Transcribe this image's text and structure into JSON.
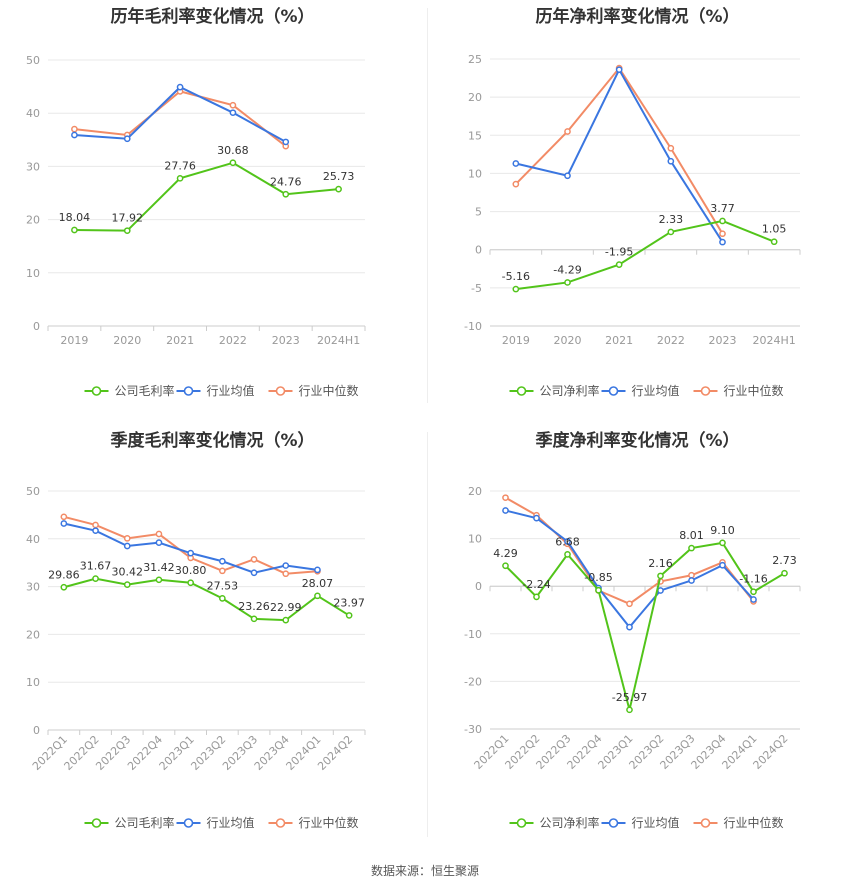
{
  "colors": {
    "company": "#52c41a",
    "industry_avg": "#3a76e0",
    "industry_median": "#f28b66",
    "grid": "#e8e8e8",
    "axis": "#cccccc"
  },
  "legend": {
    "gross": [
      "公司毛利率",
      "行业均值",
      "行业中位数"
    ],
    "net": [
      "公司净利率",
      "行业均值",
      "行业中位数"
    ]
  },
  "source": "数据来源：恒生聚源",
  "chart_data": [
    {
      "type": "line",
      "title": "历年毛利率变化情况（%）",
      "categories": [
        "2019",
        "2020",
        "2021",
        "2022",
        "2023",
        "2024H1"
      ],
      "ylim": [
        0,
        50
      ],
      "yticks": [
        0,
        10,
        20,
        30,
        40,
        50
      ],
      "legend_position": "bottom",
      "series": [
        {
          "name": "公司毛利率",
          "values": [
            18.04,
            17.92,
            27.76,
            30.68,
            24.76,
            25.73
          ],
          "labels": [
            "18.04",
            "17.92",
            "27.76",
            "30.68",
            "24.76",
            "25.73"
          ]
        },
        {
          "name": "行业均值",
          "values": [
            35.9,
            35.2,
            44.9,
            40.1,
            34.6,
            null
          ]
        },
        {
          "name": "行业中位数",
          "values": [
            37.0,
            35.9,
            44.1,
            41.5,
            33.8,
            null
          ]
        }
      ]
    },
    {
      "type": "line",
      "title": "历年净利率变化情况（%）",
      "categories": [
        "2019",
        "2020",
        "2021",
        "2022",
        "2023",
        "2024H1"
      ],
      "ylim": [
        -10,
        25
      ],
      "yticks": [
        -10,
        -5,
        0,
        5,
        10,
        15,
        20,
        25
      ],
      "legend_position": "bottom",
      "series": [
        {
          "name": "公司净利率",
          "values": [
            -5.16,
            -4.29,
            -1.95,
            2.33,
            3.77,
            1.05
          ],
          "labels": [
            "-5.16",
            "-4.29",
            "-1.95",
            "2.33",
            "3.77",
            "1.05"
          ]
        },
        {
          "name": "行业均值",
          "values": [
            11.3,
            9.7,
            23.6,
            11.6,
            1.0,
            null
          ]
        },
        {
          "name": "行业中位数",
          "values": [
            8.6,
            15.5,
            23.8,
            13.3,
            2.1,
            null
          ]
        }
      ]
    },
    {
      "type": "line",
      "title": "季度毛利率变化情况（%）",
      "categories": [
        "2022Q1",
        "2022Q2",
        "2022Q3",
        "2022Q4",
        "2023Q1",
        "2023Q2",
        "2023Q3",
        "2023Q4",
        "2024Q1",
        "2024Q2"
      ],
      "ylim": [
        0,
        50
      ],
      "yticks": [
        0,
        10,
        20,
        30,
        40,
        50
      ],
      "legend_position": "bottom",
      "series": [
        {
          "name": "公司毛利率",
          "values": [
            29.86,
            31.67,
            30.42,
            31.42,
            30.8,
            27.53,
            23.26,
            22.99,
            28.07,
            23.97
          ],
          "labels": [
            "29.86",
            "31.67",
            "30.42",
            "31.42",
            "30.80",
            "27.53",
            "23.26",
            "22.99",
            "28.07",
            "23.97"
          ]
        },
        {
          "name": "行业均值",
          "values": [
            43.2,
            41.7,
            38.5,
            39.2,
            37.0,
            35.3,
            32.9,
            34.4,
            33.5,
            null
          ]
        },
        {
          "name": "行业中位数",
          "values": [
            44.6,
            42.9,
            40.1,
            41.0,
            36.0,
            33.3,
            35.7,
            32.7,
            33.2,
            null
          ]
        }
      ]
    },
    {
      "type": "line",
      "title": "季度净利率变化情况（%）",
      "categories": [
        "2022Q1",
        "2022Q2",
        "2022Q3",
        "2022Q4",
        "2023Q1",
        "2023Q2",
        "2023Q3",
        "2023Q4",
        "2024Q1",
        "2024Q2"
      ],
      "ylim": [
        -30,
        20
      ],
      "yticks": [
        -30,
        -20,
        -10,
        0,
        10,
        20
      ],
      "legend_position": "bottom",
      "series": [
        {
          "name": "公司净利率",
          "values": [
            4.29,
            -2.24,
            6.68,
            -0.85,
            -25.97,
            2.16,
            8.01,
            9.1,
            -1.16,
            2.73
          ],
          "labels": [
            "4.29",
            "-2.24",
            "6.68",
            "-0.85",
            "-25.97",
            "2.16",
            "8.01",
            "9.10",
            "-1.16",
            "2.73"
          ]
        },
        {
          "name": "行业均值",
          "values": [
            15.9,
            14.3,
            9.4,
            -0.4,
            -8.6,
            -0.9,
            1.2,
            4.4,
            -2.8,
            null
          ]
        },
        {
          "name": "行业中位数",
          "values": [
            18.6,
            14.9,
            8.9,
            -0.9,
            -3.7,
            1.0,
            2.3,
            5.0,
            -3.2,
            null
          ]
        }
      ]
    }
  ]
}
